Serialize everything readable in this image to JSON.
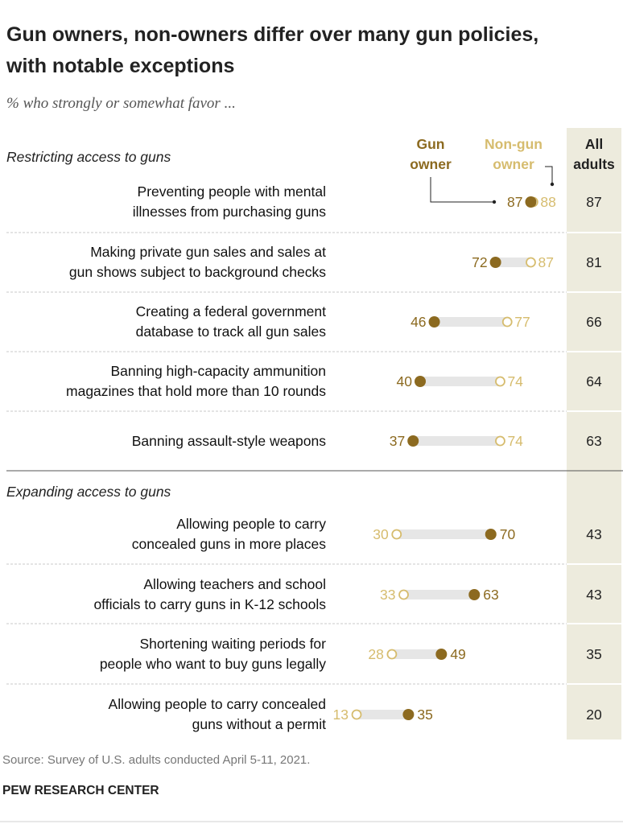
{
  "colors": {
    "gun_owner": "#8C6A20",
    "non_gun_owner": "#D6BC6E",
    "all_adults_bg": "#EDEBDD",
    "connector": "#E6E6E6",
    "divider": "#C8C8C8"
  },
  "chart_data": {
    "type": "dot-plot",
    "title": "Gun owners, non-owners differ over many gun policies, with notable exceptions",
    "title_lines": [
      "Gun owners, non-owners differ over many gun policies,",
      "with notable exceptions"
    ],
    "subtitle": "% who strongly or somewhat favor ...",
    "legend": {
      "gun_owner": [
        "Gun",
        "owner"
      ],
      "non_gun_owner": [
        "Non-gun",
        "owner"
      ],
      "all_adults": [
        "All",
        "adults"
      ]
    },
    "series": [
      {
        "name": "Gun owner",
        "key": "gun"
      },
      {
        "name": "Non-gun owner",
        "key": "non"
      },
      {
        "name": "All adults",
        "key": "all"
      }
    ],
    "xlim": [
      0,
      100
    ],
    "sections": [
      {
        "title": "Restricting access to guns",
        "items": [
          {
            "label": [
              "Preventing people with mental",
              "illnesses from purchasing guns"
            ],
            "gun": 87,
            "non": 88,
            "all": 87
          },
          {
            "label": [
              "Making private gun sales and sales at",
              "gun shows subject to background checks"
            ],
            "gun": 72,
            "non": 87,
            "all": 81
          },
          {
            "label": [
              "Creating a federal government",
              "database to track all gun sales"
            ],
            "gun": 46,
            "non": 77,
            "all": 66
          },
          {
            "label": [
              "Banning high-capacity ammunition",
              "magazines that hold more than 10 rounds"
            ],
            "gun": 40,
            "non": 74,
            "all": 64
          },
          {
            "label": [
              "Banning assault-style weapons"
            ],
            "gun": 37,
            "non": 74,
            "all": 63
          }
        ]
      },
      {
        "title": "Expanding access to guns",
        "items": [
          {
            "label": [
              "Allowing people to carry",
              "concealed guns in more places"
            ],
            "gun": 70,
            "non": 30,
            "all": 43
          },
          {
            "label": [
              "Allowing teachers and school",
              "officials to carry guns in K-12 schools"
            ],
            "gun": 63,
            "non": 33,
            "all": 43
          },
          {
            "label": [
              "Shortening waiting periods for",
              "people who want to buy guns legally"
            ],
            "gun": 49,
            "non": 28,
            "all": 35
          },
          {
            "label": [
              "Allowing people to carry concealed",
              "guns without a permit"
            ],
            "gun": 35,
            "non": 13,
            "all": 20
          }
        ]
      }
    ]
  },
  "source": "Source: Survey of U.S. adults conducted April 5-11, 2021.",
  "brand": "PEW RESEARCH CENTER"
}
